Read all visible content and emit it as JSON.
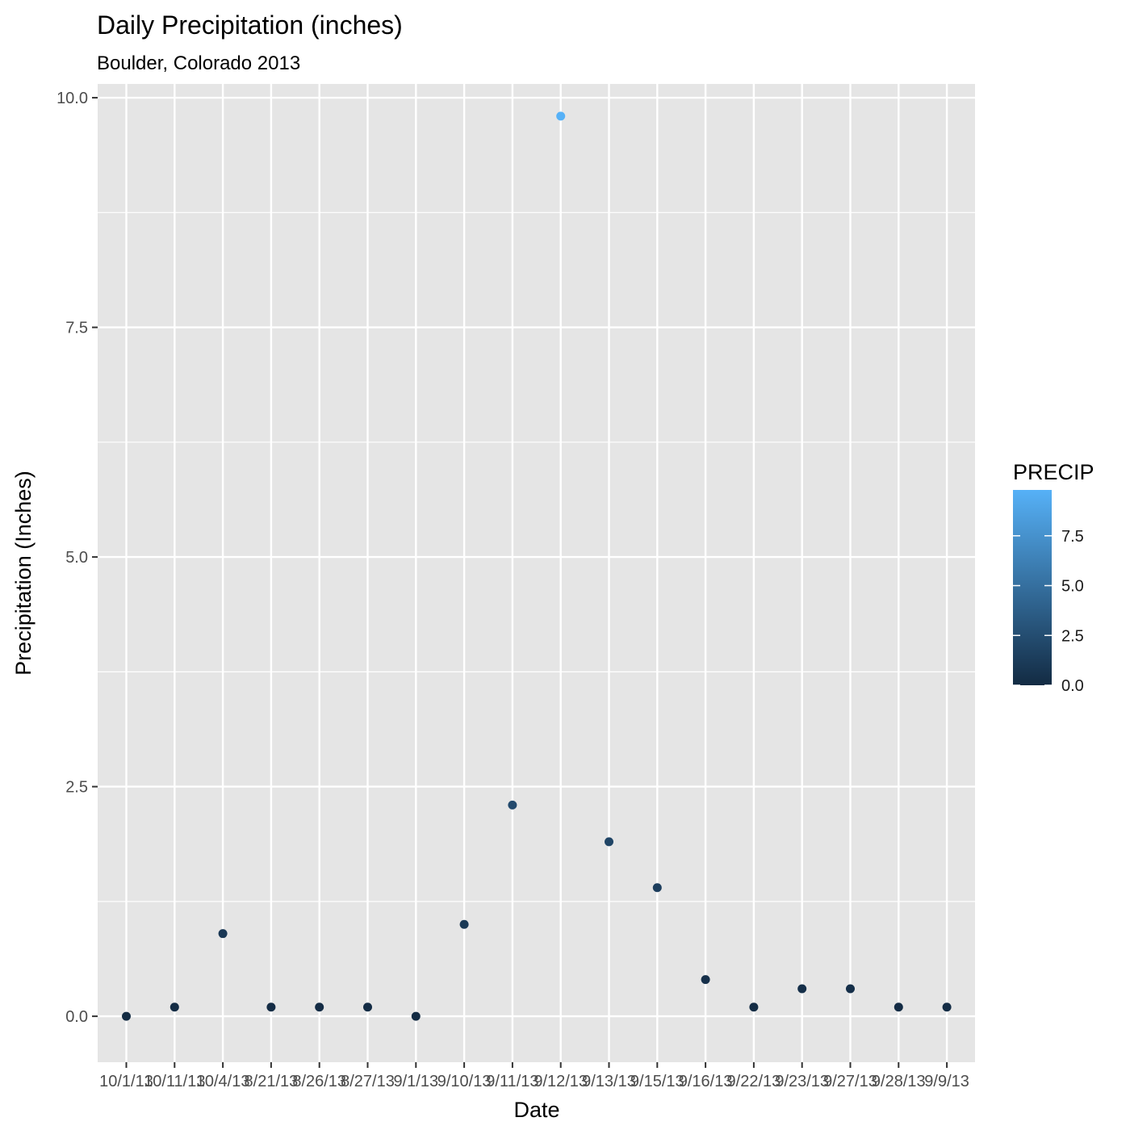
{
  "chart_data": {
    "type": "scatter",
    "title": "Daily Precipitation (inches)",
    "subtitle": "Boulder, Colorado 2013",
    "xlabel": "Date",
    "ylabel": "Precipitation (Inches)",
    "x_type": "categorical",
    "categories": [
      "10/1/13",
      "10/11/13",
      "10/4/13",
      "8/21/13",
      "8/26/13",
      "8/27/13",
      "9/1/13",
      "9/10/13",
      "9/11/13",
      "9/12/13",
      "9/13/13",
      "9/15/13",
      "9/16/13",
      "9/22/13",
      "9/23/13",
      "9/27/13",
      "9/28/13",
      "9/9/13"
    ],
    "values": [
      0.0,
      0.1,
      0.9,
      0.1,
      0.1,
      0.1,
      0.0,
      1.0,
      2.3,
      9.8,
      1.9,
      1.4,
      0.4,
      0.1,
      0.3,
      0.3,
      0.1,
      0.1
    ],
    "ylim": [
      -0.5,
      10.15
    ],
    "yticks": [
      0.0,
      2.5,
      5.0,
      7.5,
      10.0
    ],
    "ytick_labels": [
      "0.0",
      "2.5",
      "5.0",
      "7.5",
      "10.0"
    ],
    "grid": true,
    "legend": {
      "title": "PRECIP",
      "placement": "right",
      "type": "colorbar",
      "range": [
        0.0,
        9.8
      ],
      "ticks": [
        0.0,
        2.5,
        5.0,
        7.5
      ],
      "tick_labels": [
        "0.0",
        "2.5",
        "5.0",
        "7.5"
      ],
      "color_low": "#132b43",
      "color_high": "#56b1f7"
    },
    "panel_background": "#e5e5e5",
    "grid_color": "#ffffff"
  }
}
